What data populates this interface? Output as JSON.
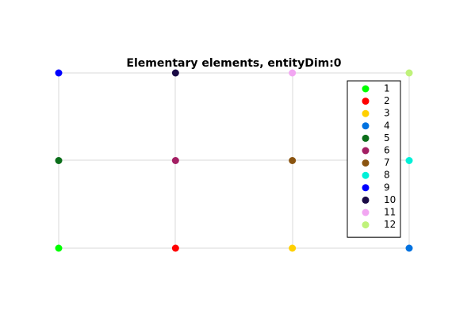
{
  "chart_data": {
    "type": "scatter",
    "title": "Elementary elements, entityDim:0",
    "xlim": [
      0,
      3
    ],
    "ylim": [
      0,
      2
    ],
    "legend": "northeast",
    "series": [
      {
        "name": "1",
        "color": "#00ff00",
        "x": [
          0
        ],
        "values": [
          0
        ]
      },
      {
        "name": "2",
        "color": "#ff0000",
        "x": [
          1
        ],
        "values": [
          0
        ]
      },
      {
        "name": "3",
        "color": "#ffd000",
        "x": [
          2
        ],
        "values": [
          0
        ]
      },
      {
        "name": "4",
        "color": "#0072e0",
        "x": [
          3
        ],
        "values": [
          0
        ]
      },
      {
        "name": "5",
        "color": "#0b6e1a",
        "x": [
          0
        ],
        "values": [
          1
        ]
      },
      {
        "name": "6",
        "color": "#a31f63",
        "x": [
          1
        ],
        "values": [
          1
        ]
      },
      {
        "name": "7",
        "color": "#8a5410",
        "x": [
          2
        ],
        "values": [
          1
        ]
      },
      {
        "name": "8",
        "color": "#00f0d8",
        "x": [
          3
        ],
        "values": [
          1
        ]
      },
      {
        "name": "9",
        "color": "#0000ff",
        "x": [
          0
        ],
        "values": [
          2
        ]
      },
      {
        "name": "10",
        "color": "#1a0a45",
        "x": [
          1
        ],
        "values": [
          2
        ]
      },
      {
        "name": "11",
        "color": "#f2a6f2",
        "x": [
          2
        ],
        "values": [
          2
        ]
      },
      {
        "name": "12",
        "color": "#bff27a",
        "x": [
          3
        ],
        "values": [
          2
        ]
      }
    ]
  }
}
